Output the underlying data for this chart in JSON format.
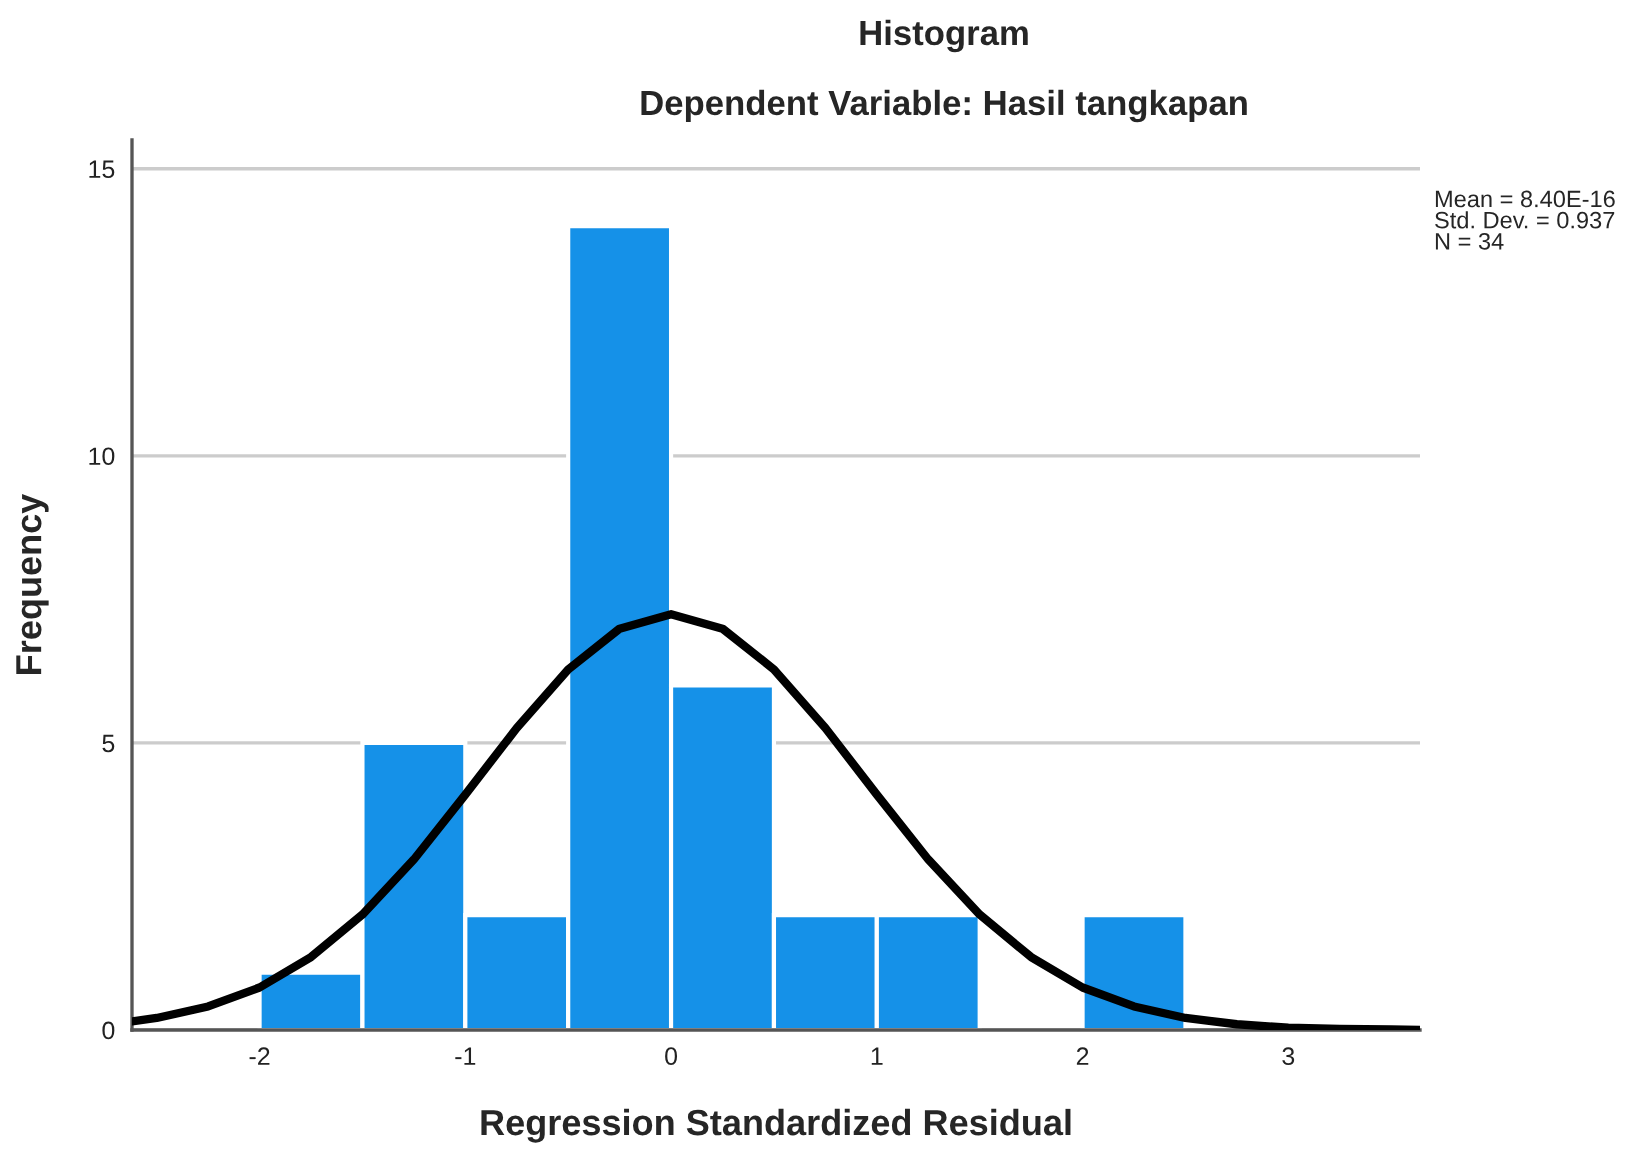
{
  "chart_data": {
    "type": "histogram",
    "title": "Histogram",
    "subtitle": "Dependent Variable: Hasil tangkapan",
    "xlabel": "Regression Standardized Residual",
    "ylabel": "Frequency",
    "bins": [
      -2,
      -1.5,
      -1,
      -0.5,
      0,
      0.5,
      1,
      1.5,
      2,
      2.5
    ],
    "values": [
      1,
      5,
      2,
      14,
      6,
      2,
      2,
      0,
      2
    ],
    "color": "#1591e8",
    "series": [
      {
        "type": "line",
        "color": "#000000",
        "x": [
          -2.62,
          -2.5,
          -2.25,
          -2,
          -1.75,
          -1.5,
          -1.25,
          -1,
          -0.75,
          -0.5,
          -0.25,
          0,
          0.25,
          0.5,
          0.75,
          1,
          1.25,
          1.5,
          1.75,
          2,
          2.25,
          2.5,
          2.75,
          3,
          3.25,
          3.5,
          3.64
        ],
        "values": [
          0.15,
          0.21,
          0.41,
          0.74,
          1.27,
          2.01,
          2.97,
          4.1,
          5.26,
          6.28,
          6.99,
          7.24,
          6.99,
          6.28,
          5.26,
          4.1,
          2.97,
          2.01,
          1.27,
          0.74,
          0.41,
          0.21,
          0.1,
          0.04,
          0.02,
          0.01,
          0.0
        ]
      }
    ],
    "annotations": [
      "Mean = 8.40E-16\nStd. Dev. = 0.937\nN = 34"
    ],
    "xlim": [
      -2.62,
      3.64
    ],
    "ylim": [
      0,
      15.5
    ],
    "xticks": [
      -2,
      -1,
      0,
      1,
      2,
      3
    ],
    "yticks": [
      0,
      5,
      10,
      15
    ],
    "grid": "y"
  }
}
